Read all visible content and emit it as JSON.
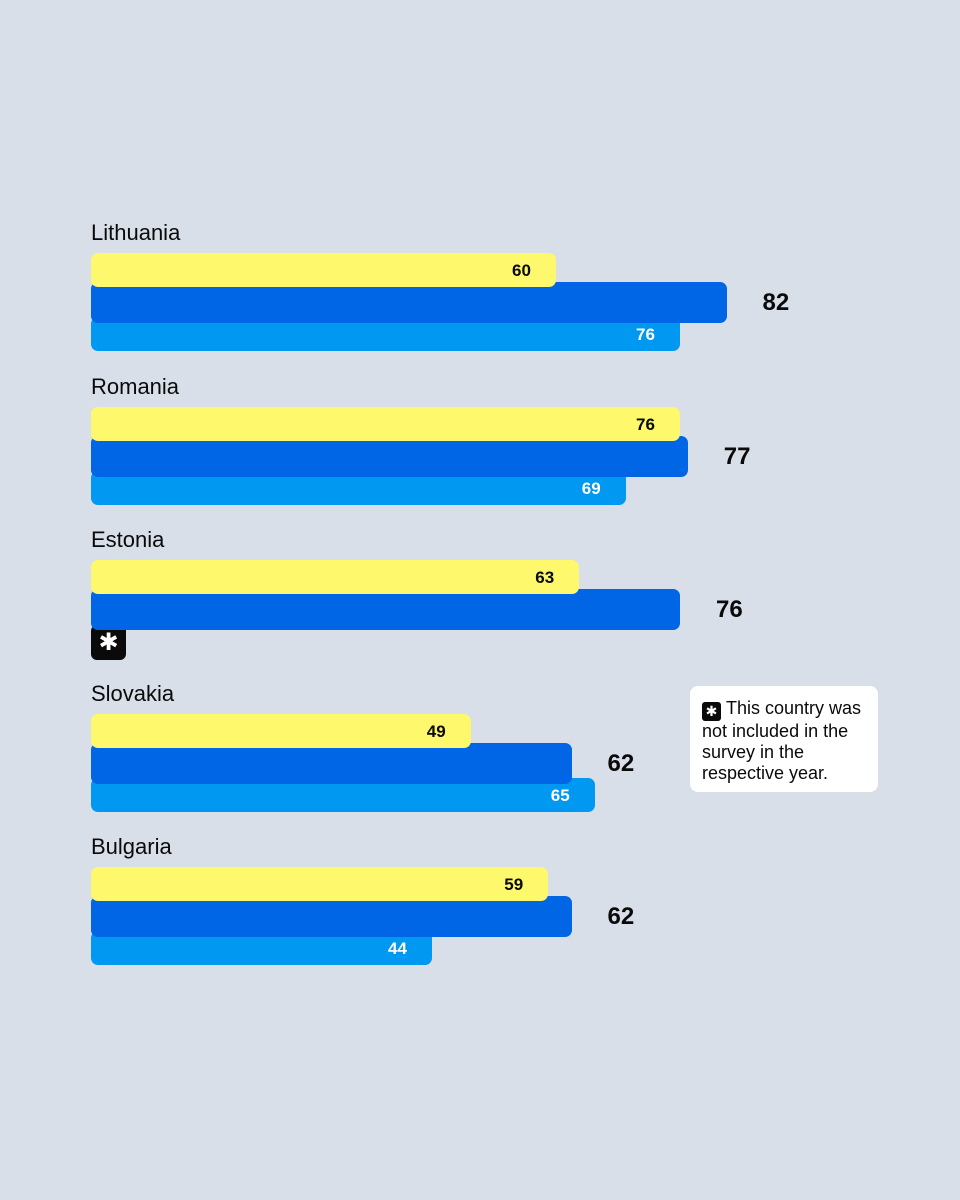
{
  "colors": {
    "background": "#d8dfe8",
    "series_yellow": "#fdf86c",
    "series_dark_blue": "#0066e6",
    "series_light_blue": "#0098f0",
    "text": "#0a0a0a"
  },
  "chart_data": {
    "type": "bar",
    "orientation": "horizontal",
    "categories": [
      "Lithuania",
      "Romania",
      "Estonia",
      "Slovakia",
      "Bulgaria"
    ],
    "series": [
      {
        "color": "#fdf86c",
        "values": [
          60,
          76,
          63,
          49,
          59
        ]
      },
      {
        "color": "#0066e6",
        "values": [
          82,
          77,
          76,
          62,
          62
        ]
      },
      {
        "color": "#0098f0",
        "values": [
          76,
          69,
          null,
          65,
          44
        ]
      }
    ],
    "xlim": [
      0,
      100
    ],
    "grid": false,
    "missing_marker": "✱"
  },
  "note": {
    "icon": "asterisk-icon",
    "badge": "✱",
    "text": "This country was not included in the survey in the respective year."
  }
}
